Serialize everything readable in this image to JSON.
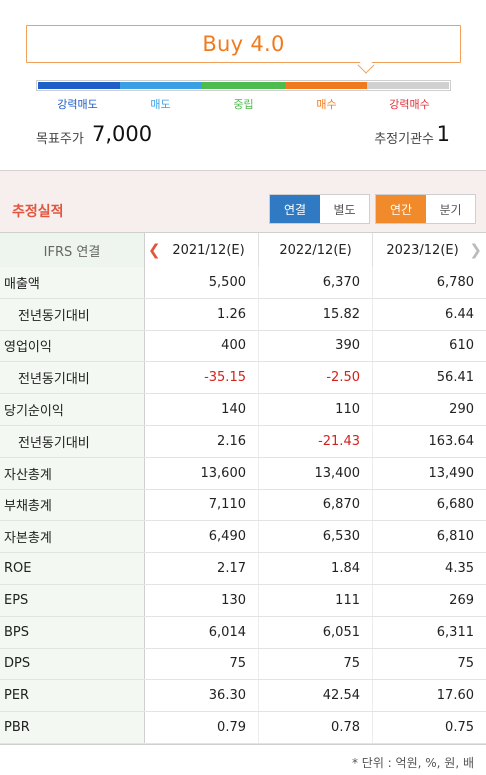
{
  "opinion": {
    "rating_text": "Buy 4.0",
    "scale": [
      {
        "label": "강력매도",
        "color": "#1f5fc8"
      },
      {
        "label": "매도",
        "color": "#3aa0e6"
      },
      {
        "label": "중립",
        "color": "#4dbb4d"
      },
      {
        "label": "매수",
        "color": "#f07b1f"
      },
      {
        "label": "강력매수",
        "color": "#d0d0d0"
      }
    ],
    "scale_label_colors": [
      "#1f5fc8",
      "#3aa0e6",
      "#4dbb4d",
      "#f07b1f",
      "#e0303a"
    ],
    "target_price_label": "목표주가",
    "target_price_value": "7,000",
    "institution_count_label": "추정기관수",
    "institution_count_value": "1"
  },
  "estimates": {
    "title": "추정실적",
    "consolidation_toggle": {
      "options": [
        "연결",
        "별도"
      ],
      "selected": "연결"
    },
    "period_toggle": {
      "options": [
        "연간",
        "분기"
      ],
      "selected": "연간"
    },
    "header_label": "IFRS 연결",
    "columns": [
      "2021/12(E)",
      "2022/12(E)",
      "2023/12(E)"
    ],
    "rows": [
      {
        "label": "매출액",
        "sub": false,
        "values": [
          "5,500",
          "6,370",
          "6,780"
        ]
      },
      {
        "label": "전년동기대비",
        "sub": true,
        "values": [
          "1.26",
          "15.82",
          "6.44"
        ]
      },
      {
        "label": "영업이익",
        "sub": false,
        "values": [
          "400",
          "390",
          "610"
        ]
      },
      {
        "label": "전년동기대비",
        "sub": true,
        "values": [
          "-35.15",
          "-2.50",
          "56.41"
        ]
      },
      {
        "label": "당기순이익",
        "sub": false,
        "values": [
          "140",
          "110",
          "290"
        ]
      },
      {
        "label": "전년동기대비",
        "sub": true,
        "values": [
          "2.16",
          "-21.43",
          "163.64"
        ]
      },
      {
        "label": "자산총계",
        "sub": false,
        "values": [
          "13,600",
          "13,400",
          "13,490"
        ]
      },
      {
        "label": "부채총계",
        "sub": false,
        "values": [
          "7,110",
          "6,870",
          "6,680"
        ]
      },
      {
        "label": "자본총계",
        "sub": false,
        "values": [
          "6,490",
          "6,530",
          "6,810"
        ]
      },
      {
        "label": "ROE",
        "sub": false,
        "values": [
          "2.17",
          "1.84",
          "4.35"
        ]
      },
      {
        "label": "EPS",
        "sub": false,
        "values": [
          "130",
          "111",
          "269"
        ]
      },
      {
        "label": "BPS",
        "sub": false,
        "values": [
          "6,014",
          "6,051",
          "6,311"
        ]
      },
      {
        "label": "DPS",
        "sub": false,
        "values": [
          "75",
          "75",
          "75"
        ]
      },
      {
        "label": "PER",
        "sub": false,
        "values": [
          "36.30",
          "42.54",
          "17.60"
        ]
      },
      {
        "label": "PBR",
        "sub": false,
        "values": [
          "0.79",
          "0.78",
          "0.75"
        ]
      }
    ],
    "negative_color": "#d3211c",
    "icons": {
      "prev": "chevron-left-icon",
      "next": "chevron-right-icon"
    },
    "footnote": "* 단위 : 억원, %, 원, 배"
  }
}
